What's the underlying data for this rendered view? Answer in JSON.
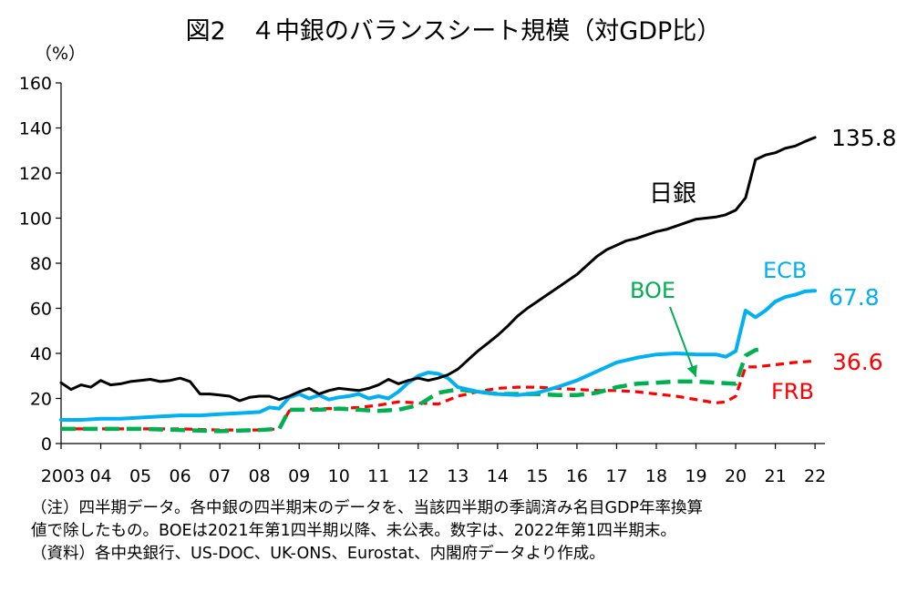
{
  "title": "図2　４中銀のバランスシート規模（対GDP比）",
  "unit_label": "（%）",
  "notes": [
    "（注）四半期データ。各中銀の四半期末のデータを、当該四半期の季調済み名目GDP年率換算",
    "値で除したもの。BOEは2021年第1四半期以降、未公表。数字は、2022年第1四半期末。",
    "（資料）各中央銀行、US-DOC、UK-ONS、Eurostat、内閣府データより作成。"
  ],
  "chart_data": {
    "type": "line",
    "title": "図2　４中銀のバランスシート規模（対GDP比）",
    "ylabel": "（%）",
    "ylim": [
      0,
      160
    ],
    "yticks": [
      0,
      20,
      40,
      60,
      80,
      100,
      120,
      140,
      160
    ],
    "xlim": [
      2003.0,
      2022.25
    ],
    "xticks": [
      {
        "value": 2003,
        "label": "2003"
      },
      {
        "value": 2004,
        "label": "04"
      },
      {
        "value": 2005,
        "label": "05"
      },
      {
        "value": 2006,
        "label": "06"
      },
      {
        "value": 2007,
        "label": "07"
      },
      {
        "value": 2008,
        "label": "08"
      },
      {
        "value": 2009,
        "label": "09"
      },
      {
        "value": 2010,
        "label": "10"
      },
      {
        "value": 2011,
        "label": "11"
      },
      {
        "value": 2012,
        "label": "12"
      },
      {
        "value": 2013,
        "label": "13"
      },
      {
        "value": 2014,
        "label": "14"
      },
      {
        "value": 2015,
        "label": "15"
      },
      {
        "value": 2016,
        "label": "16"
      },
      {
        "value": 2017,
        "label": "17"
      },
      {
        "value": 2018,
        "label": "18"
      },
      {
        "value": 2019,
        "label": "19"
      },
      {
        "value": 2020,
        "label": "20"
      },
      {
        "value": 2021,
        "label": "21"
      },
      {
        "value": 2022,
        "label": "22"
      }
    ],
    "grid": false,
    "series": [
      {
        "name": "日銀",
        "color": "#000000",
        "style": "solid",
        "end_label": "135.8",
        "points": [
          [
            2003.0,
            27
          ],
          [
            2003.25,
            24
          ],
          [
            2003.5,
            26
          ],
          [
            2003.75,
            25
          ],
          [
            2004.0,
            28
          ],
          [
            2004.25,
            26
          ],
          [
            2004.5,
            26.5
          ],
          [
            2004.75,
            27.5
          ],
          [
            2005.0,
            28
          ],
          [
            2005.25,
            28.5
          ],
          [
            2005.5,
            27.5
          ],
          [
            2005.75,
            28
          ],
          [
            2006.0,
            29
          ],
          [
            2006.25,
            27.5
          ],
          [
            2006.5,
            22
          ],
          [
            2006.75,
            22
          ],
          [
            2007.0,
            21.5
          ],
          [
            2007.25,
            21
          ],
          [
            2007.5,
            19
          ],
          [
            2007.75,
            20.5
          ],
          [
            2008.0,
            21
          ],
          [
            2008.25,
            21
          ],
          [
            2008.5,
            19.5
          ],
          [
            2008.75,
            21
          ],
          [
            2009.0,
            23
          ],
          [
            2009.25,
            24.5
          ],
          [
            2009.5,
            22
          ],
          [
            2009.75,
            23.5
          ],
          [
            2010.0,
            24.5
          ],
          [
            2010.25,
            24
          ],
          [
            2010.5,
            23.5
          ],
          [
            2010.75,
            24.5
          ],
          [
            2011.0,
            26
          ],
          [
            2011.25,
            28.5
          ],
          [
            2011.5,
            26.5
          ],
          [
            2011.75,
            28
          ],
          [
            2012.0,
            29
          ],
          [
            2012.25,
            28
          ],
          [
            2012.5,
            29
          ],
          [
            2012.75,
            30.5
          ],
          [
            2013.0,
            33
          ],
          [
            2013.25,
            37
          ],
          [
            2013.5,
            41
          ],
          [
            2013.75,
            44.5
          ],
          [
            2014.0,
            48
          ],
          [
            2014.25,
            52
          ],
          [
            2014.5,
            56.5
          ],
          [
            2014.75,
            60
          ],
          [
            2015.0,
            63
          ],
          [
            2015.25,
            66
          ],
          [
            2015.5,
            69
          ],
          [
            2015.75,
            72
          ],
          [
            2016.0,
            75
          ],
          [
            2016.25,
            79
          ],
          [
            2016.5,
            83
          ],
          [
            2016.75,
            86
          ],
          [
            2017.0,
            88
          ],
          [
            2017.25,
            90
          ],
          [
            2017.5,
            91
          ],
          [
            2017.75,
            92.5
          ],
          [
            2018.0,
            94
          ],
          [
            2018.25,
            95
          ],
          [
            2018.5,
            96.5
          ],
          [
            2018.75,
            98
          ],
          [
            2019.0,
            99.5
          ],
          [
            2019.25,
            100
          ],
          [
            2019.5,
            100.5
          ],
          [
            2019.75,
            101.5
          ],
          [
            2020.0,
            103.5
          ],
          [
            2020.25,
            109
          ],
          [
            2020.5,
            126
          ],
          [
            2020.75,
            128
          ],
          [
            2021.0,
            129
          ],
          [
            2021.25,
            131
          ],
          [
            2021.5,
            132
          ],
          [
            2021.75,
            134
          ],
          [
            2022.0,
            135.8
          ]
        ]
      },
      {
        "name": "ECB",
        "color": "#00b0f0",
        "style": "solid",
        "end_label": "67.8",
        "points": [
          [
            2003.0,
            10.5
          ],
          [
            2003.5,
            10.5
          ],
          [
            2004.0,
            11
          ],
          [
            2004.5,
            11
          ],
          [
            2005.0,
            11.5
          ],
          [
            2005.5,
            12
          ],
          [
            2006.0,
            12.5
          ],
          [
            2006.5,
            12.5
          ],
          [
            2007.0,
            13
          ],
          [
            2007.5,
            13.5
          ],
          [
            2008.0,
            14
          ],
          [
            2008.25,
            16
          ],
          [
            2008.5,
            15.5
          ],
          [
            2008.75,
            20.5
          ],
          [
            2009.0,
            22
          ],
          [
            2009.25,
            20
          ],
          [
            2009.5,
            21.5
          ],
          [
            2009.75,
            19.5
          ],
          [
            2010.0,
            20.5
          ],
          [
            2010.25,
            21
          ],
          [
            2010.5,
            22
          ],
          [
            2010.75,
            20
          ],
          [
            2011.0,
            21
          ],
          [
            2011.25,
            20
          ],
          [
            2011.5,
            23
          ],
          [
            2011.75,
            27
          ],
          [
            2012.0,
            30
          ],
          [
            2012.25,
            31.5
          ],
          [
            2012.5,
            31
          ],
          [
            2012.75,
            29
          ],
          [
            2013.0,
            25
          ],
          [
            2013.5,
            23
          ],
          [
            2014.0,
            22
          ],
          [
            2014.5,
            21.5
          ],
          [
            2015.0,
            22.5
          ],
          [
            2015.5,
            25
          ],
          [
            2016.0,
            28
          ],
          [
            2016.5,
            32
          ],
          [
            2017.0,
            36
          ],
          [
            2017.5,
            38
          ],
          [
            2018.0,
            39.5
          ],
          [
            2018.5,
            40
          ],
          [
            2019.0,
            39.5
          ],
          [
            2019.5,
            39.5
          ],
          [
            2019.75,
            38.5
          ],
          [
            2020.0,
            41
          ],
          [
            2020.25,
            59
          ],
          [
            2020.5,
            56
          ],
          [
            2020.75,
            59
          ],
          [
            2021.0,
            63
          ],
          [
            2021.25,
            65
          ],
          [
            2021.5,
            66
          ],
          [
            2021.75,
            67.5
          ],
          [
            2022.0,
            67.8
          ]
        ]
      },
      {
        "name": "FRB",
        "color": "#ff0000",
        "style": "dashed",
        "end_label": "36.6",
        "points": [
          [
            2003.0,
            6.5
          ],
          [
            2004.0,
            6.5
          ],
          [
            2005.0,
            6.5
          ],
          [
            2006.0,
            6.5
          ],
          [
            2007.0,
            6
          ],
          [
            2008.0,
            6
          ],
          [
            2008.5,
            6.5
          ],
          [
            2008.75,
            14.5
          ],
          [
            2009.0,
            15
          ],
          [
            2009.5,
            15.5
          ],
          [
            2010.0,
            15.5
          ],
          [
            2010.5,
            16
          ],
          [
            2011.0,
            17
          ],
          [
            2011.5,
            18.5
          ],
          [
            2012.0,
            18
          ],
          [
            2012.5,
            17.5
          ],
          [
            2013.0,
            21
          ],
          [
            2013.5,
            23
          ],
          [
            2014.0,
            24.5
          ],
          [
            2014.5,
            25
          ],
          [
            2015.0,
            25
          ],
          [
            2015.5,
            24.5
          ],
          [
            2016.0,
            24
          ],
          [
            2016.5,
            23.5
          ],
          [
            2017.0,
            23.5
          ],
          [
            2017.5,
            23
          ],
          [
            2018.0,
            22
          ],
          [
            2018.5,
            21
          ],
          [
            2019.0,
            19.5
          ],
          [
            2019.5,
            18
          ],
          [
            2019.75,
            18.5
          ],
          [
            2020.0,
            21
          ],
          [
            2020.25,
            34
          ],
          [
            2020.5,
            34
          ],
          [
            2021.0,
            35
          ],
          [
            2021.5,
            36
          ],
          [
            2022.0,
            36.6
          ]
        ]
      },
      {
        "name": "BOE",
        "color": "#00b050",
        "style": "dashed",
        "end_label": "",
        "points": [
          [
            2003.0,
            6.5
          ],
          [
            2005.0,
            6.5
          ],
          [
            2006.0,
            6
          ],
          [
            2007.0,
            5.5
          ],
          [
            2008.0,
            6
          ],
          [
            2008.5,
            6.5
          ],
          [
            2008.75,
            15
          ],
          [
            2009.0,
            15
          ],
          [
            2009.5,
            15
          ],
          [
            2010.0,
            15.5
          ],
          [
            2010.5,
            15
          ],
          [
            2011.0,
            14.5
          ],
          [
            2011.5,
            15
          ],
          [
            2012.0,
            17
          ],
          [
            2012.5,
            22.5
          ],
          [
            2013.0,
            24
          ],
          [
            2013.5,
            23
          ],
          [
            2014.0,
            22
          ],
          [
            2014.5,
            22
          ],
          [
            2015.0,
            22
          ],
          [
            2015.5,
            21.5
          ],
          [
            2016.0,
            21.5
          ],
          [
            2016.5,
            22.5
          ],
          [
            2017.0,
            25
          ],
          [
            2017.5,
            26.5
          ],
          [
            2018.0,
            27
          ],
          [
            2018.5,
            27.5
          ],
          [
            2019.0,
            27.5
          ],
          [
            2019.5,
            27
          ],
          [
            2020.0,
            26.5
          ],
          [
            2020.25,
            39
          ],
          [
            2020.5,
            41.5
          ],
          [
            2020.75,
            42
          ]
        ]
      }
    ],
    "annotations": [
      {
        "text": "日銀",
        "series": "日銀",
        "color": "#000000"
      },
      {
        "text": "ECB",
        "series": "ECB",
        "color": "#00b0f0"
      },
      {
        "text": "BOE",
        "series": "BOE",
        "color": "#00b050",
        "arrow_to": [
          2019.0,
          28
        ]
      },
      {
        "text": "FRB",
        "series": "FRB",
        "color": "#ff0000"
      }
    ]
  }
}
